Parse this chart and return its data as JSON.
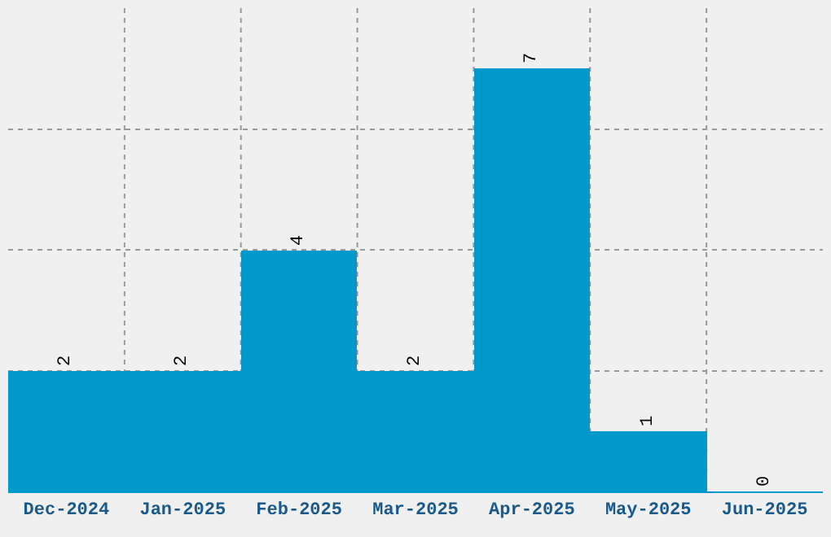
{
  "chart_data": {
    "type": "bar",
    "categories": [
      "Dec-2024",
      "Jan-2025",
      "Feb-2025",
      "Mar-2025",
      "Apr-2025",
      "May-2025",
      "Jun-2025"
    ],
    "values": [
      2,
      2,
      4,
      2,
      7,
      1,
      0
    ],
    "color": "#0099cc",
    "ylim": [
      0,
      8
    ],
    "yticks": [
      {
        "value": 2,
        "label": null
      },
      {
        "value": 4,
        "label": null
      },
      {
        "value": 6,
        "label": null
      }
    ],
    "tick_labels": "x",
    "data_labels": true,
    "grid": true,
    "legend": false
  }
}
